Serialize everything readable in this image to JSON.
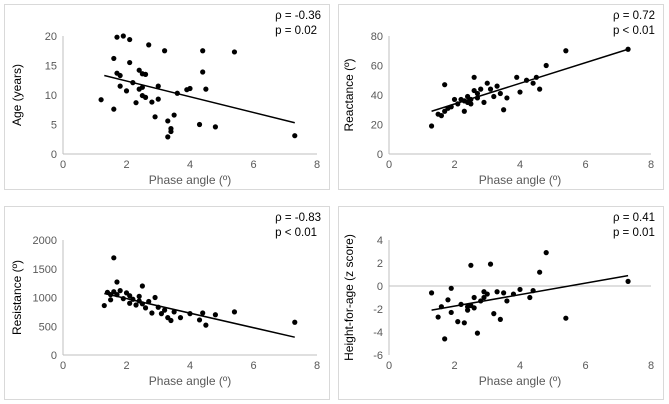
{
  "chart_data": [
    {
      "type": "scatter",
      "id": "age",
      "xlabel": "Phase angle (º)",
      "ylabel": "Age (years)",
      "xlim": [
        0,
        8
      ],
      "ylim": [
        0,
        20
      ],
      "xticks": [
        0,
        2,
        4,
        6,
        8
      ],
      "yticks": [
        0,
        5,
        10,
        15,
        20
      ],
      "stats": {
        "rho": "ρ = -0.36",
        "p": "p = 0.02"
      },
      "trendline": {
        "x": [
          1.3,
          7.3
        ],
        "y": [
          13.3,
          5.3
        ]
      },
      "x": [
        1.2,
        1.6,
        1.6,
        1.7,
        1.7,
        1.8,
        1.8,
        1.9,
        2.0,
        2.1,
        2.1,
        2.2,
        2.3,
        2.4,
        2.4,
        2.5,
        2.5,
        2.5,
        2.6,
        2.6,
        2.7,
        2.8,
        2.9,
        3.0,
        3.0,
        3.2,
        3.3,
        3.3,
        3.4,
        3.4,
        3.5,
        3.6,
        3.9,
        4.0,
        4.3,
        4.4,
        4.4,
        4.5,
        4.8,
        5.4,
        7.3
      ],
      "y": [
        9.2,
        16.2,
        7.6,
        13.7,
        19.8,
        13.3,
        11.5,
        20.0,
        10.7,
        19.4,
        15.5,
        12.1,
        8.7,
        14.2,
        11.0,
        13.6,
        9.9,
        11.3,
        9.6,
        13.5,
        18.5,
        8.8,
        6.3,
        9.3,
        11.5,
        17.5,
        5.6,
        2.9,
        4.3,
        3.8,
        6.6,
        10.3,
        10.9,
        11.1,
        5.0,
        17.5,
        13.9,
        11.0,
        4.6,
        17.3,
        3.1
      ]
    },
    {
      "type": "scatter",
      "id": "reactance",
      "xlabel": "Phase angle (º)",
      "ylabel": "Reactance (º)",
      "xlim": [
        0,
        8
      ],
      "ylim": [
        0,
        80
      ],
      "xticks": [
        0,
        2,
        4,
        6,
        8
      ],
      "yticks": [
        0,
        20,
        40,
        60,
        80
      ],
      "stats": {
        "rho": "ρ = 0.72",
        "p": "p < 0.01"
      },
      "trendline": {
        "x": [
          1.3,
          7.3
        ],
        "y": [
          29,
          71
        ]
      },
      "x": [
        1.3,
        1.5,
        1.6,
        1.7,
        1.7,
        1.8,
        1.9,
        2.0,
        2.1,
        2.2,
        2.3,
        2.3,
        2.4,
        2.4,
        2.5,
        2.5,
        2.6,
        2.6,
        2.7,
        2.7,
        2.8,
        2.9,
        3.0,
        3.1,
        3.2,
        3.3,
        3.4,
        3.5,
        3.6,
        3.9,
        4.0,
        4.2,
        4.4,
        4.5,
        4.6,
        4.8,
        5.4,
        7.3
      ],
      "y": [
        19,
        27,
        26,
        47,
        29,
        31,
        32,
        37,
        34,
        37,
        29,
        36,
        39,
        35,
        37,
        34,
        43,
        52,
        38,
        41,
        44,
        35,
        48,
        44,
        39,
        46,
        41,
        30,
        38,
        52,
        42,
        50,
        48,
        52,
        44,
        60,
        70,
        71
      ]
    },
    {
      "type": "scatter",
      "id": "resistance",
      "xlabel": "Phase angle (º)",
      "ylabel": "Resistance (º)",
      "xlim": [
        0,
        8
      ],
      "ylim": [
        0,
        2000
      ],
      "xticks": [
        0,
        2,
        4,
        6,
        8
      ],
      "yticks": [
        0,
        500,
        1000,
        1500,
        2000
      ],
      "stats": {
        "rho": "ρ = -0.83",
        "p": "p < 0.01"
      },
      "trendline": {
        "x": [
          1.3,
          7.3
        ],
        "y": [
          1070,
          310
        ]
      },
      "x": [
        1.3,
        1.4,
        1.5,
        1.5,
        1.6,
        1.6,
        1.7,
        1.7,
        1.8,
        1.9,
        2.0,
        2.1,
        2.1,
        2.2,
        2.3,
        2.4,
        2.4,
        2.5,
        2.5,
        2.6,
        2.7,
        2.8,
        2.9,
        3.0,
        3.1,
        3.2,
        3.3,
        3.4,
        3.5,
        3.7,
        4.0,
        4.3,
        4.4,
        4.5,
        4.8,
        5.4,
        7.3
      ],
      "y": [
        860,
        1090,
        1050,
        960,
        1690,
        1100,
        1270,
        1050,
        1120,
        980,
        1080,
        900,
        1030,
        970,
        870,
        940,
        1020,
        1200,
        890,
        820,
        930,
        730,
        1000,
        830,
        720,
        780,
        650,
        600,
        750,
        650,
        720,
        610,
        730,
        520,
        700,
        750,
        570
      ]
    },
    {
      "type": "scatter",
      "id": "height-for-age",
      "xlabel": "Phase angle (º)",
      "ylabel": "Height-for-age (z score)",
      "xlim": [
        0,
        8
      ],
      "ylim": [
        -6,
        4
      ],
      "xticks": [
        0,
        2,
        4,
        6,
        8
      ],
      "yticks": [
        -6,
        -4,
        -2,
        0,
        2,
        4
      ],
      "stats": {
        "rho": "ρ = 0.41",
        "p": "p = 0.01"
      },
      "trendline": {
        "x": [
          1.3,
          7.3
        ],
        "y": [
          -2.1,
          0.9
        ]
      },
      "x": [
        1.3,
        1.5,
        1.6,
        1.7,
        1.8,
        1.9,
        1.9,
        2.1,
        2.2,
        2.3,
        2.4,
        2.4,
        2.5,
        2.5,
        2.6,
        2.6,
        2.7,
        2.8,
        2.9,
        2.9,
        3.0,
        3.1,
        3.2,
        3.3,
        3.4,
        3.5,
        3.6,
        3.8,
        4.0,
        4.3,
        4.4,
        4.6,
        4.8,
        5.4,
        7.3
      ],
      "y": [
        -0.6,
        -2.7,
        -1.8,
        -4.6,
        -1.2,
        -0.2,
        -2.3,
        -3.1,
        -1.6,
        -3.2,
        -1.8,
        -2.1,
        -1.7,
        1.8,
        -1.9,
        -1.0,
        -4.1,
        -1.3,
        -0.5,
        -1.0,
        -0.7,
        1.9,
        -2.4,
        -0.5,
        -2.9,
        -0.6,
        -1.3,
        -0.7,
        -0.3,
        -1.0,
        -0.4,
        1.2,
        2.9,
        -2.8,
        0.4
      ]
    }
  ]
}
